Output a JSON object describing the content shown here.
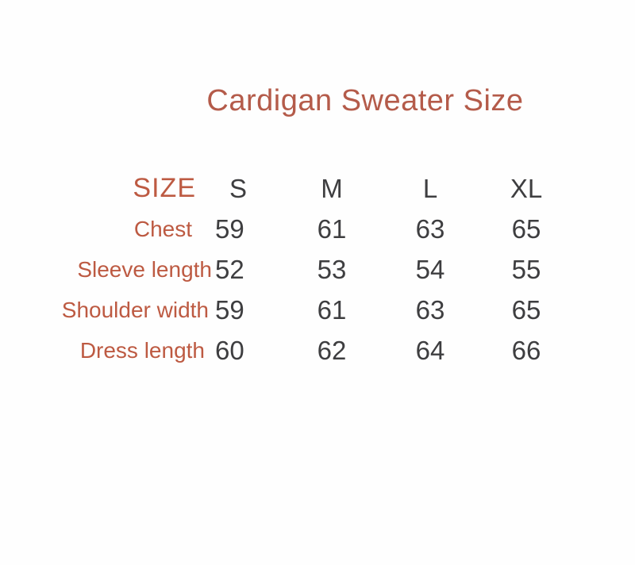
{
  "page": {
    "title": "Cardigan Sweater Size"
  },
  "colors": {
    "background": "#fefefe",
    "title": "#b45b4a",
    "label": "#bd5a42",
    "text_dark": "#3e3e40"
  },
  "chart_data": {
    "type": "table",
    "title": "Cardigan Sweater Size",
    "header": [
      "SIZE",
      "S",
      "M",
      "L",
      "XL"
    ],
    "rows": [
      {
        "label": "Chest",
        "values": [
          "59",
          "61",
          "63",
          "65"
        ]
      },
      {
        "label": "Sleeve length",
        "values": [
          "52",
          "53",
          "54",
          "55"
        ]
      },
      {
        "label": "Shoulder width",
        "values": [
          "59",
          "61",
          "63",
          "65"
        ]
      },
      {
        "label": "Dress length",
        "values": [
          "60",
          "62",
          "64",
          "66"
        ]
      }
    ],
    "legend": null,
    "grid": "off"
  }
}
